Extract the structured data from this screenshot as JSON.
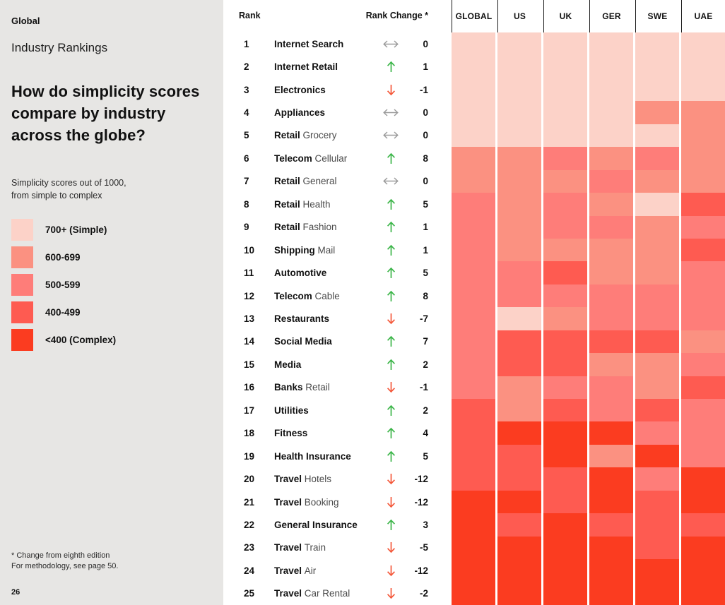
{
  "colors": {
    "sidebar_bg": "#e7e6e4",
    "arrow_up_green": "#3cb549",
    "arrow_down_red": "#f4583a",
    "arrow_same_gray": "#9a9a9a",
    "header_divider": "#1a1a1a",
    "text_primary": "#111111",
    "text_secondary": "#4a4a4a"
  },
  "sidebar": {
    "kicker": "Global",
    "subtitle": "Industry Rankings",
    "heading": "How do simplicity scores\ncompare by industry\nacross the globe?",
    "description": "Simplicity scores out of 1000,\nfrom simple to complex",
    "footnote": "* Change from eighth edition\nFor methodology, see page 50.",
    "page_number": "26"
  },
  "table": {
    "rank_label": "Rank",
    "change_label": "Rank Change *"
  },
  "chart_data": {
    "type": "heatmap",
    "title": "How do simplicity scores compare by industry across the globe?",
    "subtitle": "Simplicity scores out of 1000, from simple to complex",
    "legend_position": "left",
    "legend": [
      {
        "bucket": "700+",
        "label": "700+ (Simple)",
        "color": "#fcd2c8"
      },
      {
        "bucket": "600-699",
        "label": "600-699",
        "color": "#fb9181"
      },
      {
        "bucket": "500-599",
        "label": "500-599",
        "color": "#fe7d79"
      },
      {
        "bucket": "400-499",
        "label": "400-499",
        "color": "#fe5b51"
      },
      {
        "bucket": "<400",
        "label": "<400 (Complex)",
        "color": "#fb3c20"
      }
    ],
    "columns": [
      "GLOBAL",
      "US",
      "UK",
      "GER",
      "SWE",
      "UAE"
    ],
    "rows": [
      {
        "rank": "1",
        "industry_bold": "Internet Search",
        "industry_rest": "",
        "change": "0",
        "direction": "same",
        "scores": [
          "700+",
          "700+",
          "700+",
          "700+",
          "700+",
          "700+"
        ]
      },
      {
        "rank": "2",
        "industry_bold": "Internet Retail",
        "industry_rest": "",
        "change": "1",
        "direction": "up",
        "scores": [
          "700+",
          "700+",
          "700+",
          "700+",
          "700+",
          "700+"
        ]
      },
      {
        "rank": "3",
        "industry_bold": "Electronics",
        "industry_rest": "",
        "change": "-1",
        "direction": "down",
        "scores": [
          "700+",
          "700+",
          "700+",
          "700+",
          "700+",
          "700+"
        ]
      },
      {
        "rank": "4",
        "industry_bold": "Appliances",
        "industry_rest": "",
        "change": "0",
        "direction": "same",
        "scores": [
          "700+",
          "700+",
          "700+",
          "700+",
          "600-699",
          "600-699"
        ]
      },
      {
        "rank": "5",
        "industry_bold": "Retail",
        "industry_rest": "Grocery",
        "change": "0",
        "direction": "same",
        "scores": [
          "700+",
          "700+",
          "700+",
          "700+",
          "700+",
          "600-699"
        ]
      },
      {
        "rank": "6",
        "industry_bold": "Telecom",
        "industry_rest": "Cellular",
        "change": "8",
        "direction": "up",
        "scores": [
          "600-699",
          "600-699",
          "500-599",
          "600-699",
          "500-599",
          "600-699"
        ]
      },
      {
        "rank": "7",
        "industry_bold": "Retail",
        "industry_rest": "General",
        "change": "0",
        "direction": "same",
        "scores": [
          "600-699",
          "600-699",
          "600-699",
          "500-599",
          "600-699",
          "600-699"
        ]
      },
      {
        "rank": "8",
        "industry_bold": "Retail",
        "industry_rest": "Health",
        "change": "5",
        "direction": "up",
        "scores": [
          "500-599",
          "600-699",
          "500-599",
          "600-699",
          "700+",
          "400-499"
        ]
      },
      {
        "rank": "9",
        "industry_bold": "Retail",
        "industry_rest": "Fashion",
        "change": "1",
        "direction": "up",
        "scores": [
          "500-599",
          "600-699",
          "500-599",
          "500-599",
          "600-699",
          "500-599"
        ]
      },
      {
        "rank": "10",
        "industry_bold": "Shipping",
        "industry_rest": "Mail",
        "change": "1",
        "direction": "up",
        "scores": [
          "500-599",
          "600-699",
          "600-699",
          "600-699",
          "600-699",
          "400-499"
        ]
      },
      {
        "rank": "11",
        "industry_bold": "Automotive",
        "industry_rest": "",
        "change": "5",
        "direction": "up",
        "scores": [
          "500-599",
          "500-599",
          "400-499",
          "600-699",
          "600-699",
          "500-599"
        ]
      },
      {
        "rank": "12",
        "industry_bold": "Telecom",
        "industry_rest": "Cable",
        "change": "8",
        "direction": "up",
        "scores": [
          "500-599",
          "500-599",
          "500-599",
          "500-599",
          "500-599",
          "500-599"
        ]
      },
      {
        "rank": "13",
        "industry_bold": "Restaurants",
        "industry_rest": "",
        "change": "-7",
        "direction": "down",
        "scores": [
          "500-599",
          "700+",
          "600-699",
          "500-599",
          "500-599",
          "500-599"
        ]
      },
      {
        "rank": "14",
        "industry_bold": "Social Media",
        "industry_rest": "",
        "change": "7",
        "direction": "up",
        "scores": [
          "500-599",
          "400-499",
          "400-499",
          "400-499",
          "400-499",
          "600-699"
        ]
      },
      {
        "rank": "15",
        "industry_bold": "Media",
        "industry_rest": "",
        "change": "2",
        "direction": "up",
        "scores": [
          "500-599",
          "400-499",
          "400-499",
          "600-699",
          "600-699",
          "500-599"
        ]
      },
      {
        "rank": "16",
        "industry_bold": "Banks",
        "industry_rest": "Retail",
        "change": "-1",
        "direction": "down",
        "scores": [
          "500-599",
          "600-699",
          "500-599",
          "500-599",
          "600-699",
          "400-499"
        ]
      },
      {
        "rank": "17",
        "industry_bold": "Utilities",
        "industry_rest": "",
        "change": "2",
        "direction": "up",
        "scores": [
          "400-499",
          "600-699",
          "400-499",
          "500-599",
          "400-499",
          "500-599"
        ]
      },
      {
        "rank": "18",
        "industry_bold": "Fitness",
        "industry_rest": "",
        "change": "4",
        "direction": "up",
        "scores": [
          "400-499",
          "<400",
          "<400",
          "<400",
          "500-599",
          "500-599"
        ]
      },
      {
        "rank": "19",
        "industry_bold": "Health Insurance",
        "industry_rest": "",
        "change": "5",
        "direction": "up",
        "scores": [
          "400-499",
          "400-499",
          "<400",
          "600-699",
          "<400",
          "500-599"
        ]
      },
      {
        "rank": "20",
        "industry_bold": "Travel",
        "industry_rest": "Hotels",
        "change": "-12",
        "direction": "down",
        "scores": [
          "400-499",
          "400-499",
          "400-499",
          "<400",
          "500-599",
          "<400"
        ]
      },
      {
        "rank": "21",
        "industry_bold": "Travel",
        "industry_rest": "Booking",
        "change": "-12",
        "direction": "down",
        "scores": [
          "<400",
          "<400",
          "400-499",
          "<400",
          "400-499",
          "<400"
        ]
      },
      {
        "rank": "22",
        "industry_bold": "General Insurance",
        "industry_rest": "",
        "change": "3",
        "direction": "up",
        "scores": [
          "<400",
          "400-499",
          "<400",
          "400-499",
          "400-499",
          "400-499"
        ]
      },
      {
        "rank": "23",
        "industry_bold": "Travel",
        "industry_rest": "Train",
        "change": "-5",
        "direction": "down",
        "scores": [
          "<400",
          "<400",
          "<400",
          "<400",
          "400-499",
          "<400"
        ]
      },
      {
        "rank": "24",
        "industry_bold": "Travel",
        "industry_rest": "Air",
        "change": "-12",
        "direction": "down",
        "scores": [
          "<400",
          "<400",
          "<400",
          "<400",
          "<400",
          "<400"
        ]
      },
      {
        "rank": "25",
        "industry_bold": "Travel",
        "industry_rest": "Car Rental",
        "change": "-2",
        "direction": "down",
        "scores": [
          "<400",
          "<400",
          "<400",
          "<400",
          "<400",
          "<400"
        ]
      }
    ]
  }
}
